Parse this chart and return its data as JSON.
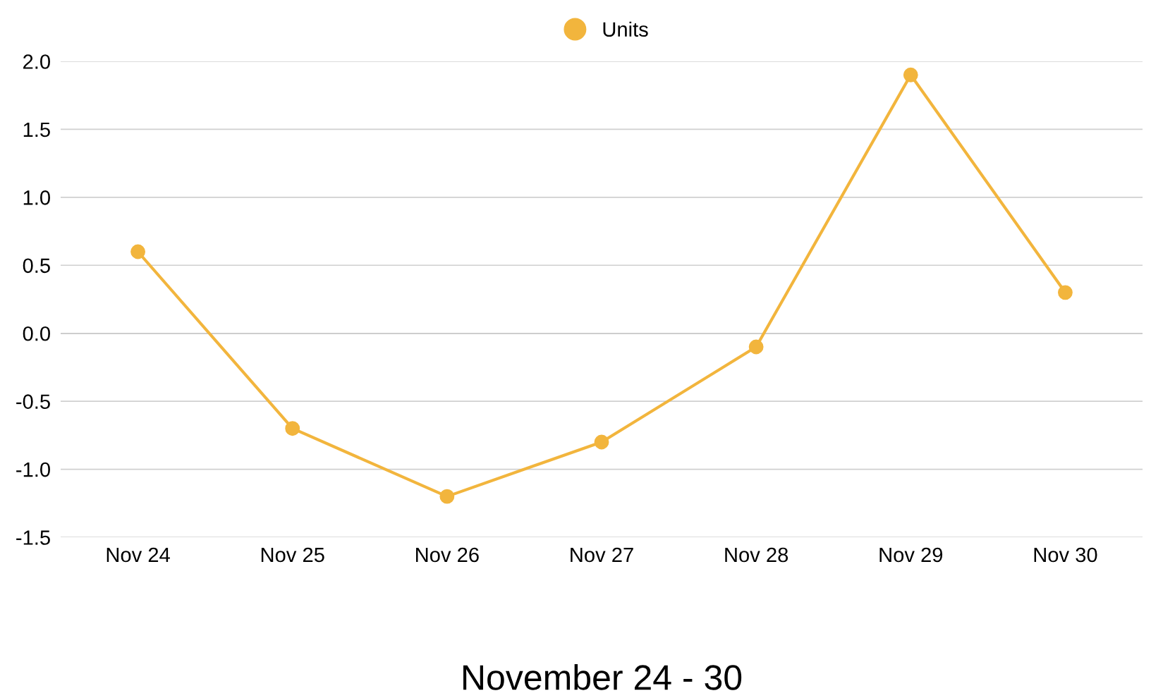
{
  "chart_data": {
    "type": "line",
    "xlabel": "November 24 - 30",
    "categories": [
      "Nov 24",
      "Nov 25",
      "Nov 26",
      "Nov 27",
      "Nov 28",
      "Nov 29",
      "Nov 30"
    ],
    "series": [
      {
        "name": "Units",
        "color": "#f2b53d",
        "values": [
          0.6,
          -0.7,
          -1.2,
          -0.8,
          -0.1,
          1.9,
          0.3
        ]
      }
    ],
    "ylim": [
      -1.5,
      2.0
    ],
    "yticks": [
      {
        "value": -1.5,
        "label": "-1.5"
      },
      {
        "value": -1.0,
        "label": "-1.0"
      },
      {
        "value": -0.5,
        "label": "-0.5"
      },
      {
        "value": 0.0,
        "label": "0.0"
      },
      {
        "value": 0.5,
        "label": "0.5"
      },
      {
        "value": 1.0,
        "label": "1.0"
      },
      {
        "value": 1.5,
        "label": "1.5"
      },
      {
        "value": 2.0,
        "label": "2.0"
      }
    ],
    "ref_lines": [
      {
        "axis": "y",
        "value": 0,
        "color": "#8a8a8a"
      }
    ],
    "grid": "y",
    "legend": "top",
    "marker": "circle",
    "line_style": "solid"
  }
}
